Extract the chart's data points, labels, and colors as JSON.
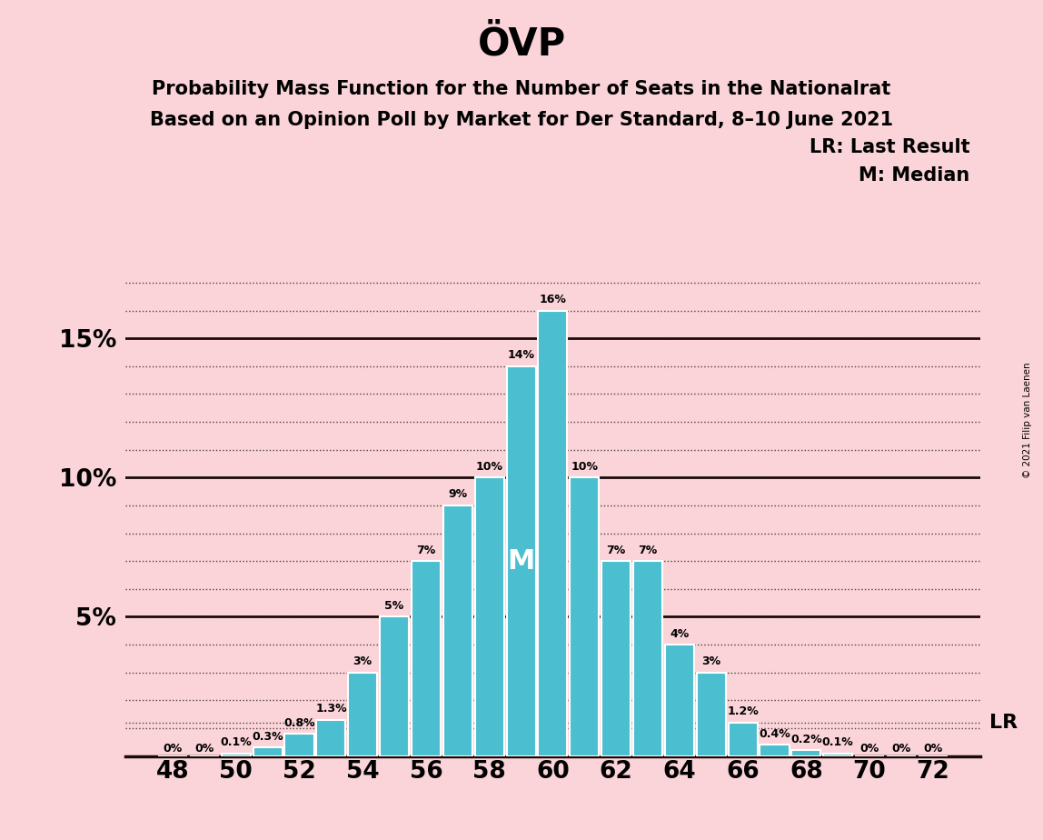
{
  "title": "ÖVP",
  "subtitle1": "Probability Mass Function for the Number of Seats in the Nationalrat",
  "subtitle2": "Based on an Opinion Poll by Market for Der Standard, 8–10 June 2021",
  "copyright": "© 2021 Filip van Laenen",
  "legend_lr": "LR: Last Result",
  "legend_m": "M: Median",
  "background_color": "#fad4d8",
  "bar_color": "#4bbfcf",
  "bar_edge_color": "#ffffff",
  "seats": [
    48,
    49,
    50,
    51,
    52,
    53,
    54,
    55,
    56,
    57,
    58,
    59,
    60,
    61,
    62,
    63,
    64,
    65,
    66,
    67,
    68,
    69,
    70,
    71,
    72
  ],
  "probabilities": [
    0.0,
    0.0,
    0.1,
    0.3,
    0.8,
    1.3,
    3.0,
    5.0,
    7.0,
    9.0,
    10.0,
    14.0,
    16.0,
    10.0,
    7.0,
    7.0,
    4.0,
    3.0,
    1.2,
    0.4,
    0.2,
    0.1,
    0.0,
    0.0,
    0.0
  ],
  "labels": [
    "0%",
    "0%",
    "0.1%",
    "0.3%",
    "0.8%",
    "1.3%",
    "3%",
    "5%",
    "7%",
    "9%",
    "10%",
    "14%",
    "16%",
    "10%",
    "7%",
    "7%",
    "4%",
    "3%",
    "1.2%",
    "0.4%",
    "0.2%",
    "0.1%",
    "0%",
    "0%",
    "0%"
  ],
  "median_seat": 59,
  "lr_seat": 66,
  "lr_prob": 1.2,
  "ylim": [
    0,
    17.5
  ],
  "grid_yticks": [
    1,
    2,
    3,
    4,
    5,
    6,
    7,
    8,
    9,
    10,
    11,
    12,
    13,
    14,
    15,
    16,
    17
  ],
  "solid_yticks": [
    5,
    10,
    15
  ],
  "xtick_seats": [
    48,
    50,
    52,
    54,
    56,
    58,
    60,
    62,
    64,
    66,
    68,
    70,
    72
  ],
  "xlim": [
    46.5,
    73.5
  ]
}
